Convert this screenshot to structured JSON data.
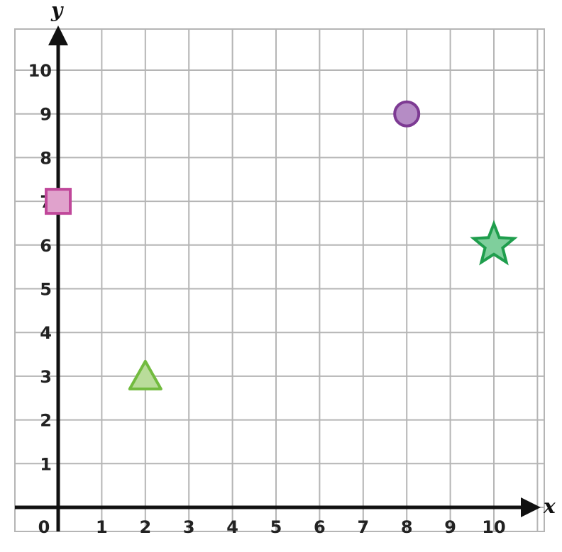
{
  "chart_data": {
    "type": "scatter",
    "title": "",
    "xlabel": "x",
    "ylabel": "y",
    "xlim": [
      0,
      10.5
    ],
    "ylim": [
      0,
      11
    ],
    "grid": true,
    "x_ticks": [
      "0",
      "1",
      "2",
      "3",
      "4",
      "5",
      "6",
      "7",
      "8",
      "9",
      "10"
    ],
    "y_ticks": [
      "1",
      "2",
      "3",
      "4",
      "5",
      "6",
      "7",
      "8",
      "9",
      "10"
    ],
    "points": [
      {
        "shape": "square",
        "x": 0,
        "y": 7,
        "fill": "#e0a2cc",
        "stroke": "#c0479a"
      },
      {
        "shape": "triangle",
        "x": 2,
        "y": 3,
        "fill": "#b9dc9a",
        "stroke": "#72bb3f"
      },
      {
        "shape": "circle",
        "x": 8,
        "y": 9,
        "fill": "#b58cc5",
        "stroke": "#7d3a93"
      },
      {
        "shape": "star",
        "x": 10,
        "y": 6,
        "fill": "#7fcf9c",
        "stroke": "#1f9e4d"
      }
    ]
  }
}
